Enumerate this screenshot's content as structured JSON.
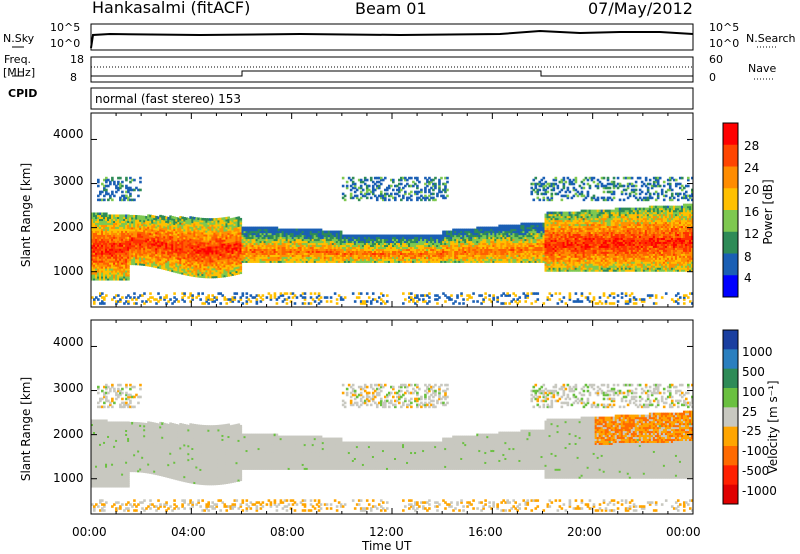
{
  "header": {
    "title": "Hankasalmi (fitACF)",
    "beam": "Beam 01",
    "date": "07/May/2012"
  },
  "aux": {
    "nsky_label": "N.Sky",
    "nsearch_label": "N.Search",
    "nsky_ticks": [
      "10^5",
      "10^0"
    ],
    "freq_label": "Freq.",
    "freq_unit": "[MHz]",
    "freq_ticks": [
      "18",
      "8"
    ],
    "nave_label": "Nave",
    "nave_ticks": [
      "60",
      "0"
    ],
    "cpid_label": "CPID",
    "cpid_text": "normal (fast stereo) 153"
  },
  "colorbars": {
    "power": {
      "label": "Power [dB]",
      "ticks": [
        "28",
        "24",
        "20",
        "16",
        "12",
        "8",
        "4"
      ],
      "colors": [
        "#ff0000",
        "#ff4500",
        "#ff8c00",
        "#ffc000",
        "#7ec850",
        "#2e8b57",
        "#1a5fb4",
        "#0000ff"
      ]
    },
    "velocity": {
      "label": "Velocity [m s⁻¹]",
      "ticks": [
        "1000",
        "500",
        "100",
        "25",
        "-25",
        "-100",
        "-500",
        "-1000"
      ],
      "colors": [
        "#1a3fa0",
        "#2a7fbf",
        "#2e8b57",
        "#6ac040",
        "#c8c8c0",
        "#ffa500",
        "#ff6a00",
        "#ff2000",
        "#e00000"
      ]
    }
  },
  "chart_data": [
    {
      "type": "heatmap",
      "panel": "power",
      "ylabel": "Slant Range [km]",
      "xlabel": "",
      "yticks": [
        "4000",
        "3000",
        "2000",
        "1000"
      ],
      "xlim": [
        0,
        24
      ],
      "ylim": [
        200,
        4600
      ],
      "grid": false
    },
    {
      "type": "heatmap",
      "panel": "velocity",
      "ylabel": "Slant Range [km]",
      "xlabel": "Time UT",
      "yticks": [
        "4000",
        "3000",
        "2000",
        "1000"
      ],
      "xticks": [
        "00:00",
        "04:00",
        "08:00",
        "12:00",
        "16:00",
        "20:00",
        "00:00"
      ],
      "xlim": [
        0,
        24
      ],
      "ylim": [
        200,
        4600
      ],
      "grid": false
    }
  ]
}
